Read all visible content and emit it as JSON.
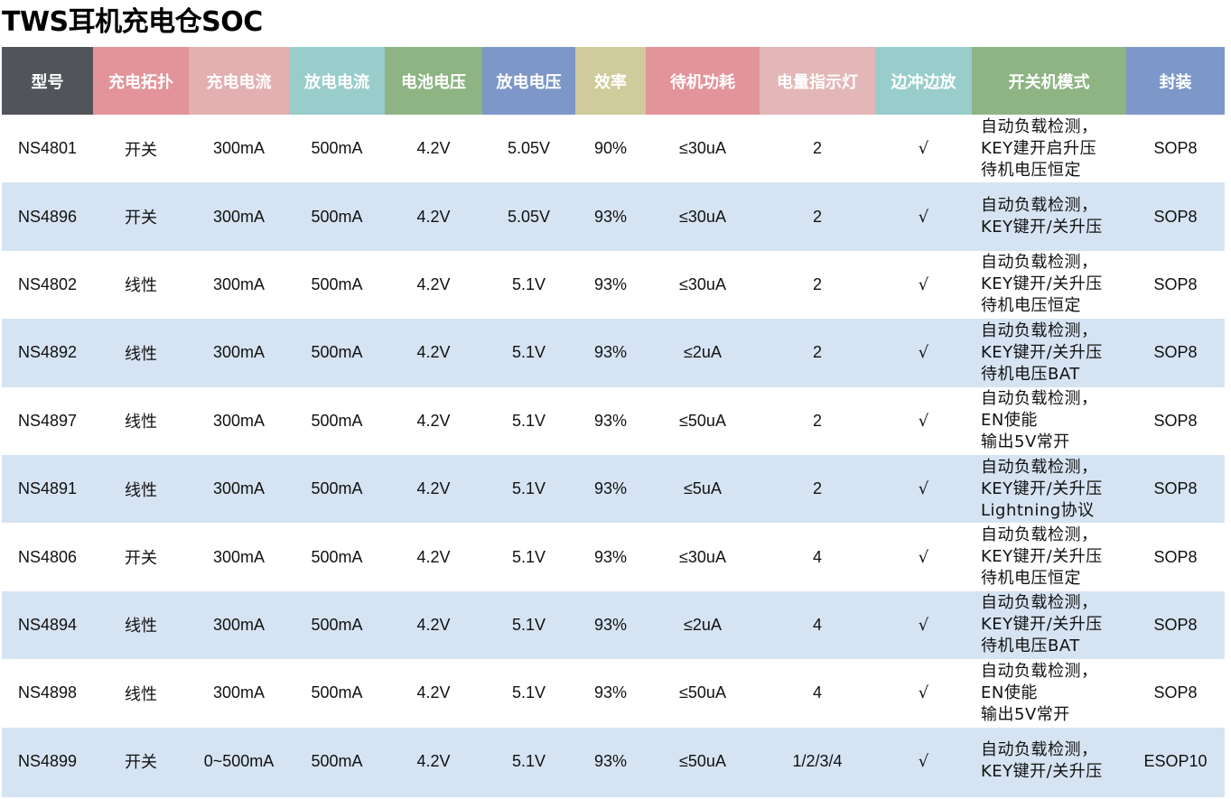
{
  "title": "TWS耳机充电仓SOC",
  "header_colors": [
    "#515559",
    "#e3939a",
    "#e3afb1",
    "#98cdcb",
    "#8eb484",
    "#7d98c8",
    "#cfcb9a",
    "#e3939a",
    "#e3b6b7",
    "#98cdcb",
    "#8eb484",
    "#7d98c8"
  ],
  "columns": [
    "型号",
    "充电拓扑",
    "充电电流",
    "放电电流",
    "电池电压",
    "放电电压",
    "效率",
    "待机功耗",
    "电量指示灯",
    "边冲边放",
    "开关机模式",
    "封装"
  ],
  "rows": [
    {
      "model": "NS4801",
      "topology": "开关",
      "charge_current": "300mA",
      "discharge_current": "500mA",
      "battery_voltage": "4.2V",
      "discharge_voltage": "5.05V",
      "efficiency": "90%",
      "standby": "≤30uA",
      "indicator": "2",
      "charge_discharge": "√",
      "mode": [
        "自动负载检测，",
        "KEY建开启升压",
        "待机电压恒定"
      ],
      "package": "SOP8"
    },
    {
      "model": "NS4896",
      "topology": "开关",
      "charge_current": "300mA",
      "discharge_current": "500mA",
      "battery_voltage": "4.2V",
      "discharge_voltage": "5.05V",
      "efficiency": "93%",
      "standby": "≤30uA",
      "indicator": "2",
      "charge_discharge": "√",
      "mode": [
        "自动负载检测，",
        "KEY键开/关升压"
      ],
      "package": "SOP8"
    },
    {
      "model": "NS4802",
      "topology": "线性",
      "charge_current": "300mA",
      "discharge_current": "500mA",
      "battery_voltage": "4.2V",
      "discharge_voltage": "5.1V",
      "efficiency": "93%",
      "standby": "≤30uA",
      "indicator": "2",
      "charge_discharge": "√",
      "mode": [
        "自动负载检测，",
        "KEY键开/关升压",
        "待机电压恒定"
      ],
      "package": "SOP8"
    },
    {
      "model": "NS4892",
      "topology": "线性",
      "charge_current": "300mA",
      "discharge_current": "500mA",
      "battery_voltage": "4.2V",
      "discharge_voltage": "5.1V",
      "efficiency": "93%",
      "standby": "≤2uA",
      "indicator": "2",
      "charge_discharge": "√",
      "mode": [
        "自动负载检测，",
        "KEY键开/关升压",
        "待机电压BAT"
      ],
      "package": "SOP8"
    },
    {
      "model": "NS4897",
      "topology": "线性",
      "charge_current": "300mA",
      "discharge_current": "500mA",
      "battery_voltage": "4.2V",
      "discharge_voltage": "5.1V",
      "efficiency": "93%",
      "standby": "≤50uA",
      "indicator": "2",
      "charge_discharge": "√",
      "mode": [
        "自动负载检测，",
        "EN使能",
        "输出5V常开"
      ],
      "package": "SOP8"
    },
    {
      "model": "NS4891",
      "topology": "线性",
      "charge_current": "300mA",
      "discharge_current": "500mA",
      "battery_voltage": "4.2V",
      "discharge_voltage": "5.1V",
      "efficiency": "93%",
      "standby": "≤5uA",
      "indicator": "2",
      "charge_discharge": "√",
      "mode": [
        "自动负载检测，",
        "KEY键开/关升压",
        "Lightning协议"
      ],
      "package": "SOP8"
    },
    {
      "model": "NS4806",
      "topology": "开关",
      "charge_current": "300mA",
      "discharge_current": "500mA",
      "battery_voltage": "4.2V",
      "discharge_voltage": "5.1V",
      "efficiency": "93%",
      "standby": "≤30uA",
      "indicator": "4",
      "charge_discharge": "√",
      "mode": [
        "自动负载检测，",
        "KEY键开/关升压",
        "待机电压恒定"
      ],
      "package": "SOP8"
    },
    {
      "model": "NS4894",
      "topology": "线性",
      "charge_current": "300mA",
      "discharge_current": "500mA",
      "battery_voltage": "4.2V",
      "discharge_voltage": "5.1V",
      "efficiency": "93%",
      "standby": "≤2uA",
      "indicator": "4",
      "charge_discharge": "√",
      "mode": [
        "自动负载检测，",
        "KEY键开/关升压",
        "待机电压BAT"
      ],
      "package": "SOP8"
    },
    {
      "model": "NS4898",
      "topology": "线性",
      "charge_current": "300mA",
      "discharge_current": "500mA",
      "battery_voltage": "4.2V",
      "discharge_voltage": "5.1V",
      "efficiency": "93%",
      "standby": "≤50uA",
      "indicator": "4",
      "charge_discharge": "√",
      "mode": [
        "自动负载检测，",
        "EN使能",
        "输出5V常开"
      ],
      "package": "SOP8"
    },
    {
      "model": "NS4899",
      "topology": "开关",
      "charge_current": "0~500mA",
      "discharge_current": "500mA",
      "battery_voltage": "4.2V",
      "discharge_voltage": "5.1V",
      "efficiency": "93%",
      "standby": "≤50uA",
      "indicator": "1/2/3/4",
      "charge_discharge": "√",
      "mode": [
        "自动负载检测，",
        "KEY键开/关升压"
      ],
      "package": "ESOP10"
    }
  ]
}
